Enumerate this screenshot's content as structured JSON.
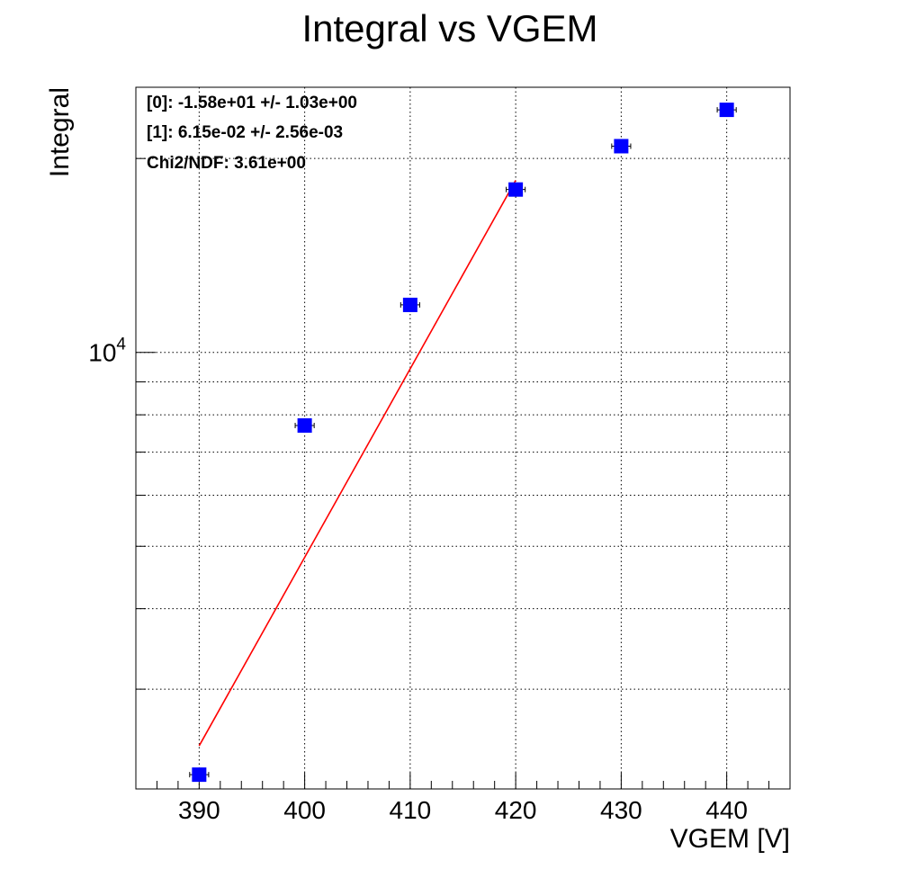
{
  "chart_data": {
    "type": "scatter",
    "title": "Integral vs VGEM",
    "xlabel": "VGEM [V]",
    "ylabel": "Integral",
    "xlim": [
      384,
      446
    ],
    "ylim": [
      2100,
      25800
    ],
    "yscale": "log",
    "grid": true,
    "x_ticks": [
      390,
      400,
      410,
      420,
      430,
      440
    ],
    "x_tick_labels": [
      "390",
      "400",
      "410",
      "420",
      "430",
      "440"
    ],
    "y_tick_labels": [
      {
        "value": 10000,
        "base": "10",
        "exp": "4"
      }
    ],
    "series": [
      {
        "name": "",
        "color": "#0000ff",
        "marker": "square",
        "points": [
          {
            "x": 390,
            "y": 2210,
            "xerr": 0.9
          },
          {
            "x": 400,
            "y": 7700,
            "xerr": 0.9
          },
          {
            "x": 410,
            "y": 11850,
            "xerr": 0.9
          },
          {
            "x": 420,
            "y": 17900,
            "xerr": 0.9
          },
          {
            "x": 430,
            "y": 20900,
            "xerr": 0.9
          },
          {
            "x": 440,
            "y": 23800,
            "xerr": 0.9
          }
        ]
      }
    ],
    "fit": {
      "color": "#ff0000",
      "x_range": [
        390,
        420
      ],
      "y_values": [
        2450,
        18500
      ]
    },
    "stats_box": [
      "[0]: -1.58e+01 +/- 1.03e+00",
      "[1]: 6.15e-02 +/- 2.56e-03",
      "Chi2/NDF: 3.61e+00"
    ]
  }
}
